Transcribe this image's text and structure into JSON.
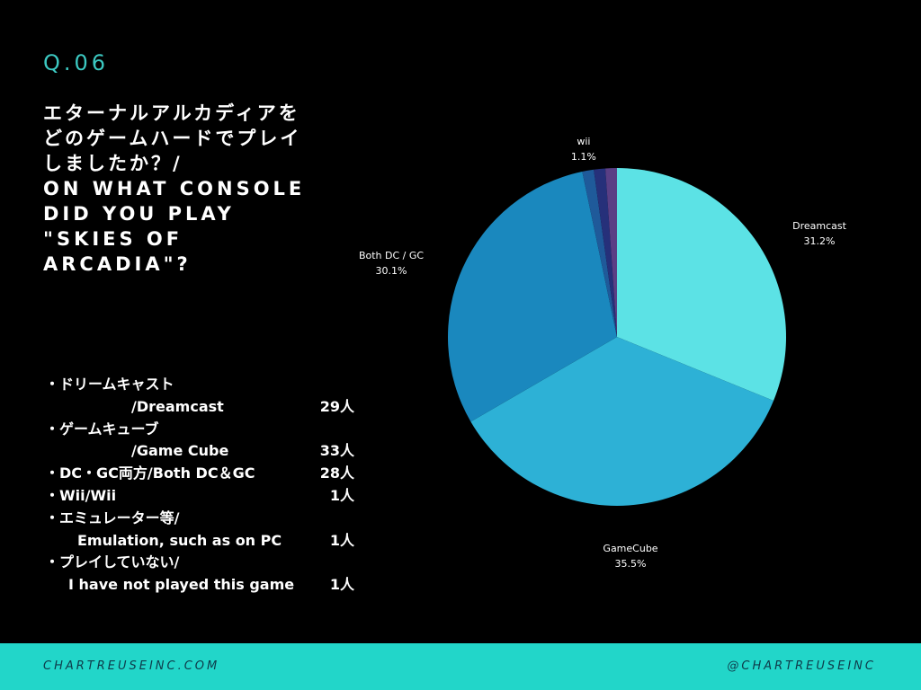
{
  "question_number": "Q.06",
  "question": {
    "ja_line1": "エターナルアルカディアを",
    "ja_line2": "どのゲームハードでプレイ",
    "ja_line3": "しましたか？/",
    "en_line1": "ON WHAT CONSOLE",
    "en_line2": "DID YOU PLAY",
    "en_line3": "\"SKIES OF",
    "en_line4": "ARCADIA\"?"
  },
  "stats": [
    {
      "text": "・ドリームキャスト",
      "count": ""
    },
    {
      "text": "/Dreamcast",
      "count": "29人"
    },
    {
      "text": "・ゲームキューブ",
      "count": ""
    },
    {
      "text": "/Game Cube",
      "count": "33人"
    },
    {
      "text": "・DC・GC両方/Both DC＆GC",
      "count": "28人"
    },
    {
      "text": "・Wii/Wii",
      "count": "1人"
    },
    {
      "text": "・エミュレーター等/",
      "count": ""
    },
    {
      "text": "Emulation, such as on PC",
      "count": "1人"
    },
    {
      "text": "・プレイしていない/",
      "count": ""
    },
    {
      "text": "I have not played this game",
      "count": "1人"
    }
  ],
  "footer": {
    "left": "CHARTREUSEINC.COM",
    "right": "@CHARTREUSEINC"
  },
  "chart_data": {
    "type": "pie",
    "slices": [
      {
        "label": "Dreamcast",
        "value": 31.2,
        "value_label": "31.2%",
        "color": "#5ce2e5"
      },
      {
        "label": "GameCube",
        "value": 35.5,
        "value_label": "35.5%",
        "color": "#2db1d6"
      },
      {
        "label": "Both DC / GC",
        "value": 30.1,
        "value_label": "30.1%",
        "color": "#1a88be"
      },
      {
        "label": "",
        "value": 1.1,
        "value_label": "",
        "color": "#1f5a9a"
      },
      {
        "label": "",
        "value": 1.1,
        "value_label": "",
        "color": "#26307a"
      },
      {
        "label": "wii",
        "value": 1.1,
        "value_label": "1.1%",
        "color": "#5a3f85"
      }
    ]
  },
  "colors": {
    "background": "#000000",
    "accent": "#3cc9c2",
    "footer_bg": "#22d6c9",
    "footer_text": "#0e3b4a"
  }
}
